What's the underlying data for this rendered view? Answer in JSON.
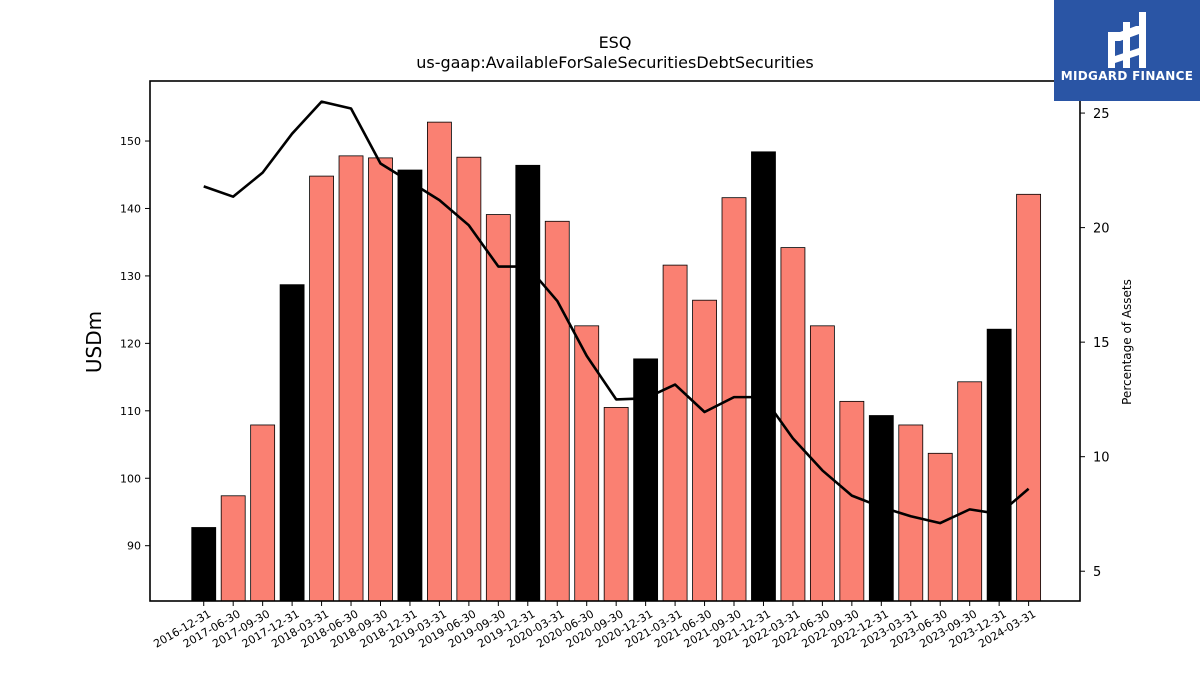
{
  "chart_data": {
    "type": "bar",
    "title": "ESQ",
    "subtitle": "us-gaap:AvailableForSaleSecuritiesDebtSecurities",
    "ylabel": "USDm",
    "y2label": "Percentage of Assets",
    "ylim": [
      81.8,
      158.9
    ],
    "y2lim": [
      3.7,
      26.4
    ],
    "yticks": [
      90,
      100,
      110,
      120,
      130,
      140,
      150
    ],
    "y2ticks": [
      5,
      10,
      15,
      20,
      25
    ],
    "categories": [
      "2016-12-31",
      "2017-06-30",
      "2017-09-30",
      "2017-12-31",
      "2018-03-31",
      "2018-06-30",
      "2018-09-30",
      "2018-12-31",
      "2019-03-31",
      "2019-06-30",
      "2019-09-30",
      "2019-12-31",
      "2020-03-31",
      "2020-06-30",
      "2020-09-30",
      "2020-12-31",
      "2021-03-31",
      "2021-06-30",
      "2021-09-30",
      "2021-12-31",
      "2022-03-31",
      "2022-06-30",
      "2022-09-30",
      "2022-12-31",
      "2023-03-31",
      "2023-06-30",
      "2023-09-30",
      "2023-12-31",
      "2024-03-31"
    ],
    "series": [
      {
        "kind": "bar",
        "values": [
          92.7,
          97.4,
          107.9,
          128.7,
          144.8,
          147.8,
          147.5,
          145.7,
          152.8,
          147.6,
          139.1,
          146.4,
          138.1,
          122.6,
          110.5,
          117.7,
          131.6,
          126.4,
          141.6,
          148.4,
          134.2,
          122.6,
          111.4,
          109.3,
          107.9,
          103.7,
          114.3,
          122.1,
          142.1
        ]
      },
      {
        "kind": "line",
        "axis": "right",
        "values": [
          21.8,
          21.35,
          22.4,
          24.1,
          25.5,
          25.2,
          22.8,
          22.0,
          21.2,
          20.1,
          18.3,
          18.3,
          16.8,
          14.4,
          12.5,
          12.55,
          13.15,
          11.95,
          12.6,
          12.6,
          10.8,
          9.4,
          8.3,
          7.8,
          7.4,
          7.1,
          7.7,
          7.5,
          8.6
        ]
      }
    ],
    "bar_colors": {
      "default": "#fa8072",
      "year_end": "#000000"
    },
    "line_color": "#000000",
    "grid": false,
    "legend": "none"
  },
  "logo": {
    "text": "MIDGARD FINANCE",
    "background": "#2a55a5"
  }
}
